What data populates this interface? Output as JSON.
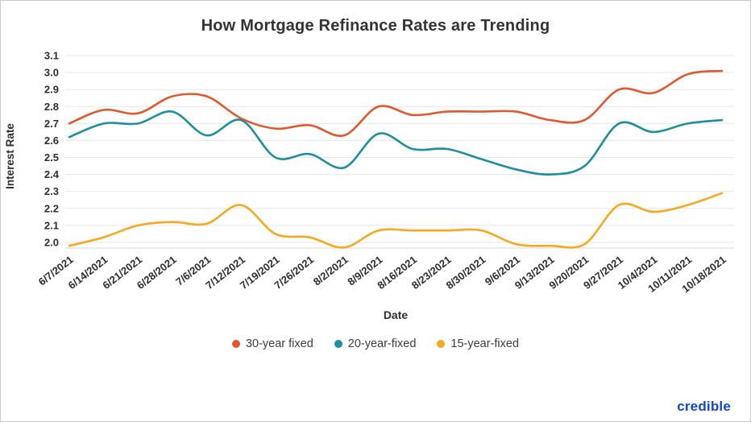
{
  "branding": {
    "logo_text": "credible",
    "logo_color": "#0f47c8"
  },
  "chart_data": {
    "type": "line",
    "title": "How Mortgage Refinance Rates are Trending",
    "xlabel": "Date",
    "ylabel": "Interest Rate",
    "x": [
      "6/7/2021",
      "6/14/2021",
      "6/21/2021",
      "6/28/2021",
      "7/6/2021",
      "7/12/2021",
      "7/19/2021",
      "7/26/2021",
      "8/2/2021",
      "8/9/2021",
      "8/16/2021",
      "8/23/2021",
      "8/30/2021",
      "9/6/2021",
      "9/13/2021",
      "9/20/2021",
      "9/27/2021",
      "10/4/2021",
      "10/11/2021",
      "10/18/2021"
    ],
    "series": [
      {
        "name": "30-year fixed",
        "color": "#e2572b",
        "values": [
          2.7,
          2.78,
          2.76,
          2.86,
          2.86,
          2.73,
          2.67,
          2.69,
          2.63,
          2.8,
          2.75,
          2.77,
          2.77,
          2.77,
          2.72,
          2.72,
          2.9,
          2.88,
          2.99,
          3.01
        ]
      },
      {
        "name": "20-year-fixed",
        "color": "#1d8ea0",
        "values": [
          2.62,
          2.7,
          2.7,
          2.77,
          2.63,
          2.72,
          2.5,
          2.52,
          2.44,
          2.64,
          2.55,
          2.55,
          2.49,
          2.43,
          2.4,
          2.45,
          2.7,
          2.65,
          2.7,
          2.72
        ]
      },
      {
        "name": "15-year-fixed",
        "color": "#f8a81e",
        "values": [
          1.98,
          2.03,
          2.1,
          2.12,
          2.11,
          2.22,
          2.05,
          2.03,
          1.97,
          2.07,
          2.07,
          2.07,
          2.07,
          1.99,
          1.98,
          1.99,
          2.22,
          2.18,
          2.22,
          2.29
        ]
      }
    ],
    "yticks": [
      3.1,
      3.0,
      2.9,
      2.8,
      2.7,
      2.6,
      2.5,
      2.4,
      2.3,
      2.2,
      2.1,
      2.0
    ],
    "ytick_labels": [
      "3.1",
      "3.0",
      "2.9",
      "2.8",
      "2.7",
      "2.6",
      "2.5",
      "2.4",
      "2.3",
      "2.2",
      "2.1",
      "2.0"
    ],
    "ylim": [
      1.95,
      3.1
    ],
    "grid": true,
    "legend_position": "bottom"
  }
}
